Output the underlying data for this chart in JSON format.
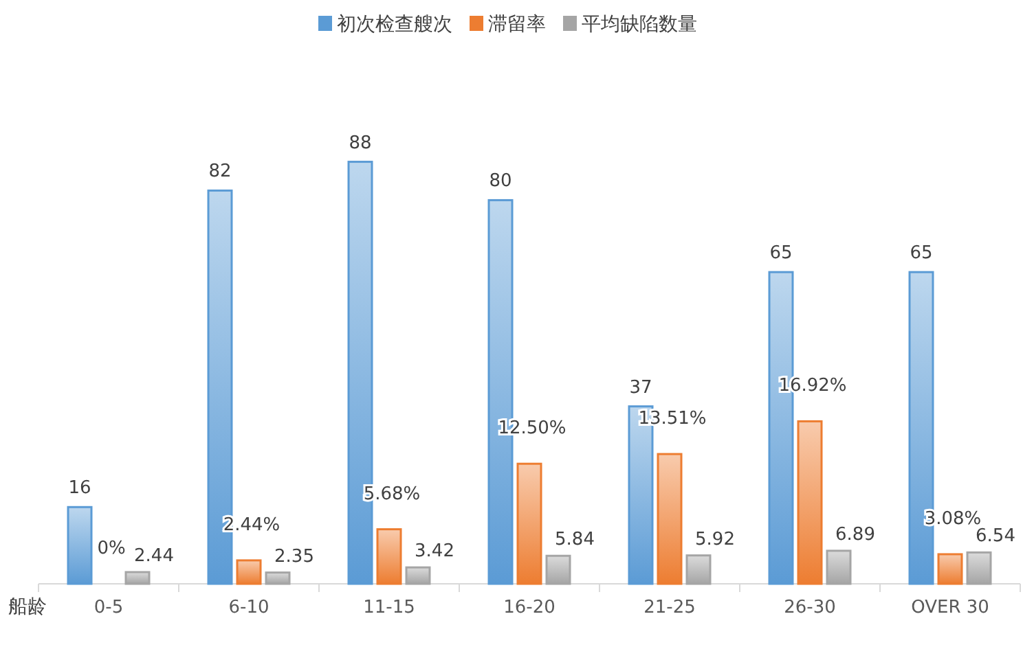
{
  "chart_data": {
    "type": "bar",
    "xlabel": "船龄",
    "categories": [
      "0-5",
      "6-10",
      "11-15",
      "16-20",
      "21-25",
      "26-30",
      "OVER 30"
    ],
    "series": [
      {
        "name": "初次检查艘次",
        "color": "#5b9bd5",
        "values": [
          16,
          82,
          88,
          80,
          37,
          65,
          65
        ]
      },
      {
        "name": "滞留率",
        "color": "#ed7d31",
        "axis": "y2",
        "values": [
          0,
          2.44,
          5.68,
          12.5,
          13.51,
          16.92,
          3.08
        ],
        "value_labels": [
          "0%",
          "2.44%",
          "5.68%",
          "12.50%",
          "13.51%",
          "16.92%",
          "3.08%"
        ]
      },
      {
        "name": "平均缺陷数量",
        "color": "#a5a5a5",
        "values": [
          2.44,
          2.35,
          3.42,
          5.84,
          5.92,
          6.89,
          6.54
        ]
      }
    ],
    "tick_labels": "x",
    "data_labels": true,
    "legend": "top"
  }
}
